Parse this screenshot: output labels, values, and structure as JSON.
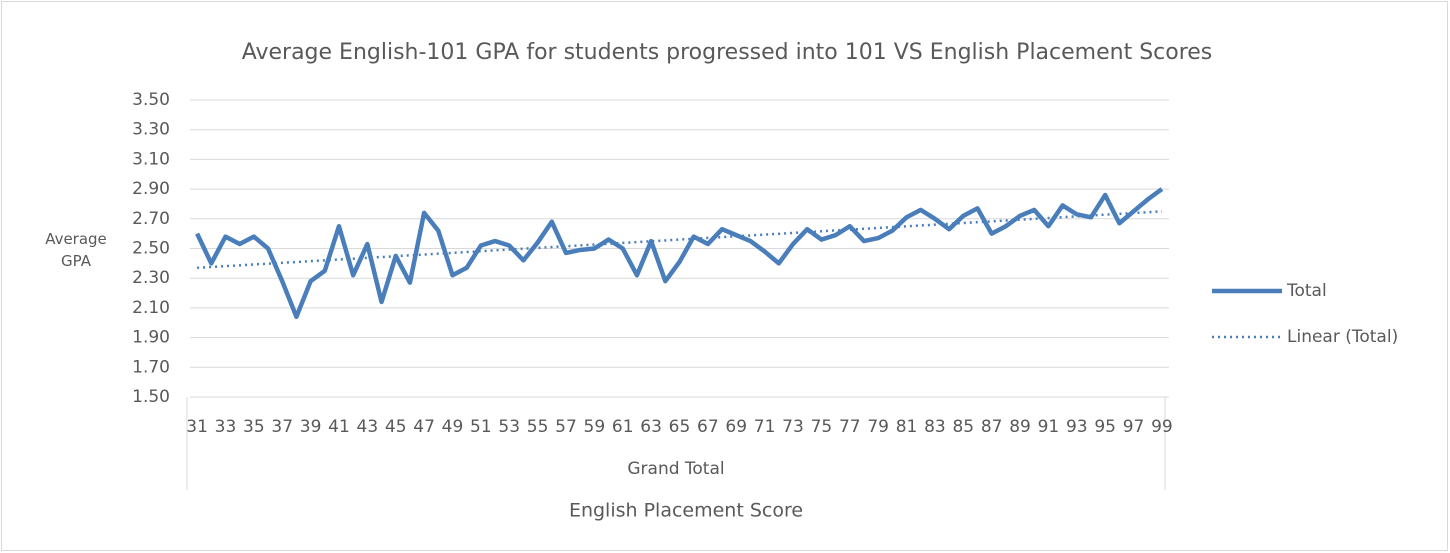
{
  "chart_data": {
    "type": "line",
    "title": "Average English-101 GPA for students progressed into 101 VS English Placement Scores",
    "y_label": "Average GPA",
    "x_group_label": "Grand Total",
    "x_label": "English Placement Score",
    "categories": [
      "31",
      null,
      "33",
      null,
      "35",
      null,
      "37",
      null,
      "39",
      null,
      "41",
      null,
      "43",
      null,
      "45",
      null,
      "47",
      null,
      "49",
      null,
      "51",
      null,
      "53",
      null,
      "55",
      null,
      "57",
      null,
      "59",
      null,
      "61",
      null,
      "63",
      null,
      "65",
      null,
      "67",
      null,
      "69",
      null,
      "71",
      null,
      "73",
      null,
      "75",
      null,
      "77",
      null,
      "79",
      null,
      "81",
      null,
      "83",
      null,
      "85",
      null,
      "87",
      null,
      "89",
      null,
      "91",
      null,
      "93",
      null,
      "95",
      null,
      "97",
      null,
      "99"
    ],
    "series": [
      {
        "name": "Total",
        "color": "#4a7ebb",
        "values": [
          2.6,
          2.4,
          2.58,
          2.53,
          2.58,
          2.5,
          2.28,
          2.04,
          2.28,
          2.35,
          2.65,
          2.32,
          2.53,
          2.14,
          2.45,
          2.27,
          2.74,
          2.62,
          2.32,
          2.37,
          2.52,
          2.55,
          2.52,
          2.42,
          2.54,
          2.68,
          2.47,
          2.49,
          2.5,
          2.56,
          2.5,
          2.32,
          2.55,
          2.28,
          2.41,
          2.58,
          2.53,
          2.63,
          2.59,
          2.55,
          2.48,
          2.4,
          2.53,
          2.63,
          2.56,
          2.59,
          2.65,
          2.55,
          2.57,
          2.62,
          2.71,
          2.76,
          2.7,
          2.63,
          2.72,
          2.77,
          2.6,
          2.65,
          2.72,
          2.76,
          2.65,
          2.79,
          2.73,
          2.71,
          2.86,
          2.67,
          2.75,
          2.83,
          2.9
        ]
      }
    ],
    "trendline": {
      "name": "Linear (Total)",
      "color": "#4a7ebb",
      "start": 2.37,
      "end": 2.75
    },
    "ylim": [
      1.5,
      3.5
    ],
    "yticks": [
      {
        "value": 1.5,
        "label": "1.50"
      },
      {
        "value": 1.7,
        "label": "1.70"
      },
      {
        "value": 1.9,
        "label": "1.90"
      },
      {
        "value": 2.1,
        "label": "2.10"
      },
      {
        "value": 2.3,
        "label": "2.30"
      },
      {
        "value": 2.5,
        "label": "2.50"
      },
      {
        "value": 2.7,
        "label": "2.70"
      },
      {
        "value": 2.9,
        "label": "2.90"
      },
      {
        "value": 3.1,
        "label": "3.10"
      },
      {
        "value": 3.3,
        "label": "3.30"
      },
      {
        "value": 3.5,
        "label": "3.50"
      }
    ],
    "grid": true,
    "legend": "right"
  }
}
